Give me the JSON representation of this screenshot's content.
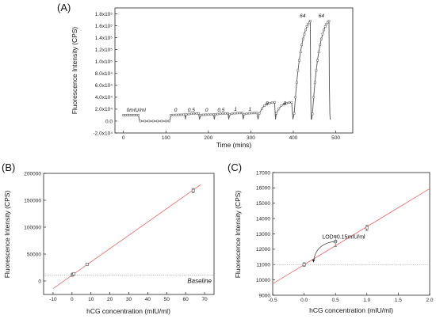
{
  "colors": {
    "fit_line": "#e06a6a",
    "data": "#555555",
    "axis": "#222222",
    "baseline": "#888888"
  },
  "chart_data": [
    {
      "id": "A",
      "type": "line",
      "panel_label": "(A)",
      "xlabel": "Time (mins)",
      "ylabel": "Fluorescence Intensity (CPS)",
      "xlim": [
        -20,
        540
      ],
      "ylim": [
        -20000,
        190000
      ],
      "xticks": [
        0,
        100,
        200,
        300,
        400,
        500
      ],
      "xtick_labels": [
        "0",
        "100",
        "200",
        "300",
        "400",
        "500"
      ],
      "yticks": [
        -20000,
        0,
        20000,
        40000,
        60000,
        80000,
        100000,
        120000,
        140000,
        160000,
        180000
      ],
      "ytick_labels": [
        "-2.0x10⁴",
        "0.0",
        "2.0x10⁴",
        "4.0x10⁴",
        "6.0x10⁴",
        "8.0x10⁴",
        "1.0x10⁵",
        "1.2x10⁵",
        "1.4x10⁵",
        "1.6x10⁵",
        "1.8x10⁵"
      ],
      "segments": [
        {
          "x": [
            0,
            5,
            10,
            15,
            20,
            25,
            30,
            35
          ],
          "y": [
            10000,
            10000,
            10200,
            10000,
            10100,
            10000,
            10100,
            10000
          ]
        },
        {
          "x": [
            40,
            50,
            60,
            70,
            80,
            90,
            100,
            108
          ],
          "y": [
            0,
            0,
            0,
            0,
            0,
            0,
            0,
            0
          ]
        },
        {
          "x": [
            112,
            118,
            124,
            130,
            136,
            142,
            145
          ],
          "y": [
            10000,
            10200,
            10400,
            10500,
            10600,
            10700,
            10700
          ]
        },
        {
          "x": [
            148,
            154,
            160,
            166,
            172,
            177
          ],
          "y": [
            11000,
            11800,
            12300,
            12600,
            12800,
            12900
          ]
        },
        {
          "x": [
            182,
            188,
            194,
            200,
            206,
            212
          ],
          "y": [
            10200,
            10500,
            10700,
            10800,
            10900,
            11000
          ]
        },
        {
          "x": [
            216,
            222,
            228,
            234,
            240,
            246
          ],
          "y": [
            11000,
            11800,
            12300,
            12600,
            12800,
            12900
          ]
        },
        {
          "x": [
            250,
            256,
            262,
            268,
            274,
            280
          ],
          "y": [
            11000,
            12400,
            13100,
            13400,
            13500,
            13600
          ]
        },
        {
          "x": [
            284,
            290,
            296,
            302,
            308,
            314
          ],
          "y": [
            11200,
            12500,
            13100,
            13400,
            13500,
            13600
          ]
        },
        {
          "x": [
            320,
            326,
            332,
            338,
            344,
            350,
            356
          ],
          "y": [
            13000,
            21000,
            26000,
            28500,
            30000,
            31000,
            31500
          ]
        },
        {
          "x": [
            360,
            366,
            372,
            378,
            384,
            390,
            396
          ],
          "y": [
            13000,
            21000,
            26000,
            28500,
            30000,
            31000,
            31500
          ]
        },
        {
          "x": [
            402,
            405,
            408,
            411,
            414,
            417,
            420,
            423,
            426,
            429,
            432,
            435,
            438,
            440
          ],
          "y": [
            13000,
            40000,
            65000,
            85000,
            102000,
            116000,
            128000,
            138000,
            146000,
            153000,
            159000,
            163000,
            166000,
            168000
          ]
        },
        {
          "x": [
            445,
            448,
            451,
            454,
            457,
            460,
            463,
            466,
            469,
            472,
            475,
            478,
            481,
            484
          ],
          "y": [
            12000,
            40000,
            65000,
            85000,
            102000,
            116000,
            128000,
            138000,
            146000,
            153000,
            159000,
            163000,
            166000,
            168000
          ]
        }
      ],
      "drops": [
        {
          "x": [
            35,
            38,
            40
          ],
          "y": [
            10000,
            0,
            0
          ]
        },
        {
          "x": [
            108,
            110,
            112
          ],
          "y": [
            0,
            3000,
            10000
          ]
        },
        {
          "x": [
            145,
            146,
            148
          ],
          "y": [
            10700,
            3000,
            11000
          ]
        },
        {
          "x": [
            177,
            179,
            182
          ],
          "y": [
            12900,
            3000,
            10200
          ]
        },
        {
          "x": [
            212,
            214,
            216
          ],
          "y": [
            11000,
            3000,
            11000
          ]
        },
        {
          "x": [
            246,
            248,
            250
          ],
          "y": [
            12900,
            3000,
            11000
          ]
        },
        {
          "x": [
            280,
            282,
            284
          ],
          "y": [
            13600,
            3000,
            11200
          ]
        },
        {
          "x": [
            314,
            317,
            320
          ],
          "y": [
            13600,
            3000,
            13000
          ]
        },
        {
          "x": [
            356,
            358,
            360
          ],
          "y": [
            31500,
            3000,
            13000
          ]
        },
        {
          "x": [
            396,
            399,
            402
          ],
          "y": [
            31500,
            3000,
            13000
          ]
        },
        {
          "x": [
            440,
            441,
            442,
            443,
            445
          ],
          "y": [
            168000,
            40000,
            3000,
            3000,
            12000
          ]
        },
        {
          "x": [
            484,
            485,
            486,
            487,
            488
          ],
          "y": [
            168000,
            60000,
            12000,
            3000,
            3000
          ]
        }
      ],
      "annotations": [
        {
          "text": "0mIU/ml",
          "x": 30,
          "y": 16000
        },
        {
          "text": "0",
          "x": 123,
          "y": 16000
        },
        {
          "text": "0.5",
          "x": 160,
          "y": 16000
        },
        {
          "text": "0",
          "x": 196,
          "y": 16000
        },
        {
          "text": "0.5",
          "x": 230,
          "y": 16000
        },
        {
          "text": "1",
          "x": 264,
          "y": 17000
        },
        {
          "text": "1",
          "x": 298,
          "y": 17000
        },
        {
          "text": "8",
          "x": 338,
          "y": 27000
        },
        {
          "text": "8",
          "x": 380,
          "y": 27000
        },
        {
          "text": "64",
          "x": 422,
          "y": 174000
        },
        {
          "text": "64",
          "x": 466,
          "y": 174000
        }
      ]
    },
    {
      "id": "B",
      "type": "scatter",
      "panel_label": "(B)",
      "xlabel": "hCG concentration (mIU/ml)",
      "ylabel": "Fluorescence Intensity (CPS)",
      "xlim": [
        -15,
        75
      ],
      "ylim": [
        -25000,
        200000
      ],
      "xticks": [
        -10,
        0,
        10,
        20,
        30,
        40,
        50,
        60,
        70
      ],
      "xtick_labels": [
        "-10",
        "0",
        "10",
        "20",
        "30",
        "40",
        "50",
        "60",
        "70"
      ],
      "yticks": [
        0,
        50000,
        100000,
        150000,
        200000
      ],
      "ytick_labels": [
        "0",
        "50000",
        "100000",
        "150000",
        "200000"
      ],
      "points": [
        {
          "x": 0,
          "y": 11000,
          "err": 1500
        },
        {
          "x": 0.5,
          "y": 12500,
          "err": 1500
        },
        {
          "x": 1,
          "y": 13400,
          "err": 1500
        },
        {
          "x": 8,
          "y": 31000,
          "err": 2000
        },
        {
          "x": 64,
          "y": 168000,
          "err": 4000
        }
      ],
      "fit": {
        "x": [
          -10,
          68
        ],
        "y": [
          -14000,
          179000
        ]
      },
      "baseline_y": 11000,
      "baseline_label": "Baseline"
    },
    {
      "id": "C",
      "type": "scatter",
      "panel_label": "(C)",
      "xlabel": "hCG concentration (mIU/ml)",
      "ylabel": "Fluorescence Intensity (CPS)",
      "xlim": [
        -0.5,
        2.0
      ],
      "ylim": [
        9000,
        17000
      ],
      "xticks": [
        -0.5,
        0.0,
        0.5,
        1.0,
        1.5,
        2.0
      ],
      "xtick_labels": [
        "-0.5",
        "0.0",
        "0.5",
        "1.0",
        "1.5",
        "2.0"
      ],
      "yticks": [
        9000,
        10000,
        11000,
        12000,
        13000,
        14000,
        15000,
        16000,
        17000
      ],
      "ytick_labels": [
        "9000",
        "10000",
        "11000",
        "12000",
        "13000",
        "14000",
        "15000",
        "16000",
        "17000"
      ],
      "points": [
        {
          "x": 0,
          "y": 11000,
          "err": 120
        },
        {
          "x": 0.5,
          "y": 12500,
          "err": 320
        },
        {
          "x": 1.0,
          "y": 13400,
          "err": 180
        }
      ],
      "fit": {
        "x": [
          -0.5,
          2.0
        ],
        "y": [
          9750,
          15950
        ]
      },
      "baseline_y": 11000,
      "annotation": {
        "text": "LOD=0.15mIU/ml",
        "x": 0.63,
        "y": 12680,
        "arrow_to": [
          0.15,
          11150
        ]
      }
    }
  ]
}
